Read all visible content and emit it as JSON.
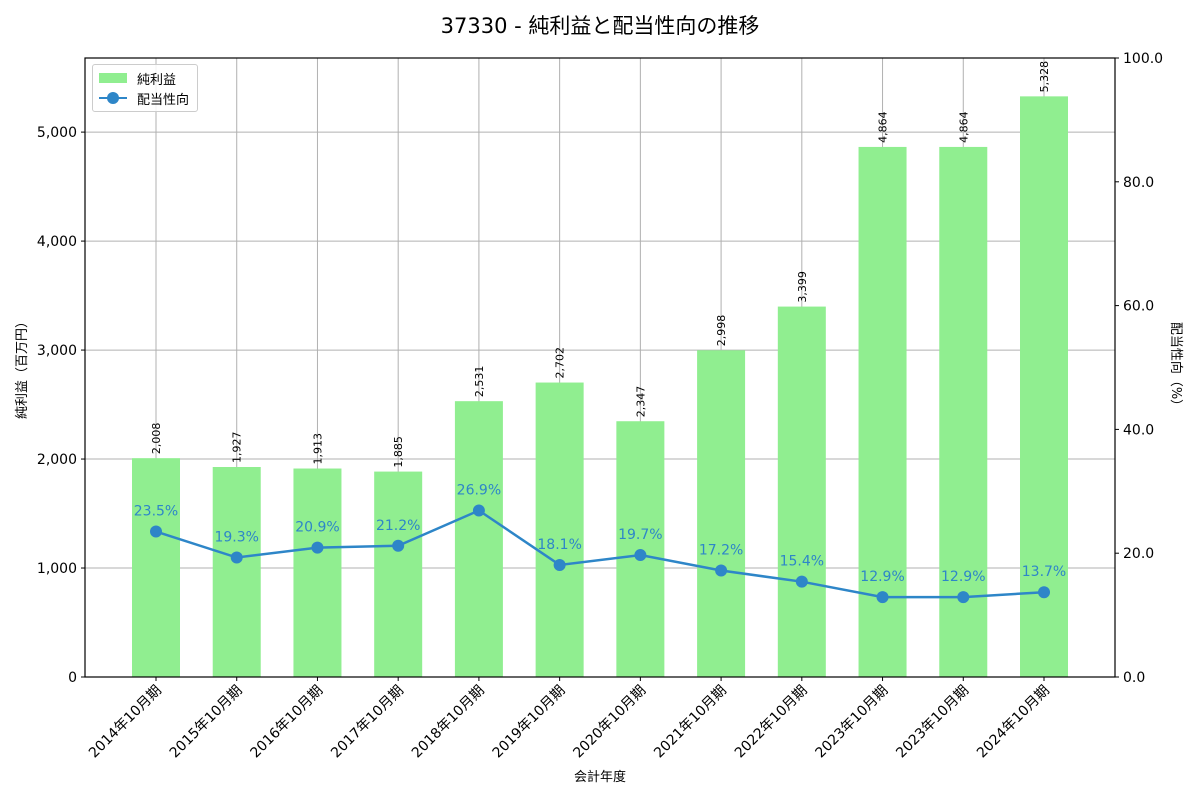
{
  "title": "37330 - 純利益と配当性向の推移",
  "legend": {
    "bar_label": "純利益",
    "line_label": "配当性向"
  },
  "axes": {
    "xlabel": "会計年度",
    "ylabel_left": "純利益（百万円）",
    "ylabel_right": "配当性向（%）",
    "left_ticks": [
      "0",
      "1,000",
      "2,000",
      "3,000",
      "4,000",
      "5,000"
    ],
    "right_ticks": [
      "0.0",
      "20.0",
      "40.0",
      "60.0",
      "80.0",
      "100.0"
    ]
  },
  "colors": {
    "bar": "#90ee90",
    "line": "#2e86c8",
    "grid": "#b0b0b0"
  },
  "chart_data": {
    "type": "bar+line",
    "title": "37330 - 純利益と配当性向の推移",
    "xlabel": "会計年度",
    "ylabel": "純利益（百万円）",
    "ylabel_right": "配当性向（%）",
    "ylim": [
      0,
      5680
    ],
    "ylim_right": [
      0,
      100
    ],
    "grid": true,
    "legend_position": "upper left",
    "categories": [
      "2014年10月期",
      "2015年10月期",
      "2016年10月期",
      "2017年10月期",
      "2018年10月期",
      "2019年10月期",
      "2020年10月期",
      "2021年10月期",
      "2022年10月期",
      "2023年10月期",
      "2023年10月期",
      "2024年10月期"
    ],
    "series": [
      {
        "name": "純利益",
        "type": "bar",
        "axis": "left",
        "values": [
          2008,
          1927,
          1913,
          1885,
          2531,
          2702,
          2347,
          2998,
          3399,
          4864,
          4864,
          5328
        ],
        "labels": [
          "2,008",
          "1,927",
          "1,913",
          "1,885",
          "2,531",
          "2,702",
          "2,347",
          "2,998",
          "3,399",
          "4,864",
          "4,864",
          "5,328"
        ]
      },
      {
        "name": "配当性向",
        "type": "line",
        "axis": "right",
        "values": [
          23.5,
          19.3,
          20.9,
          21.2,
          26.9,
          18.1,
          19.7,
          17.2,
          15.4,
          12.9,
          12.9,
          13.7
        ],
        "labels": [
          "23.5%",
          "19.3%",
          "20.9%",
          "21.2%",
          "26.9%",
          "18.1%",
          "19.7%",
          "17.2%",
          "15.4%",
          "12.9%",
          "12.9%",
          "13.7%"
        ]
      }
    ]
  }
}
